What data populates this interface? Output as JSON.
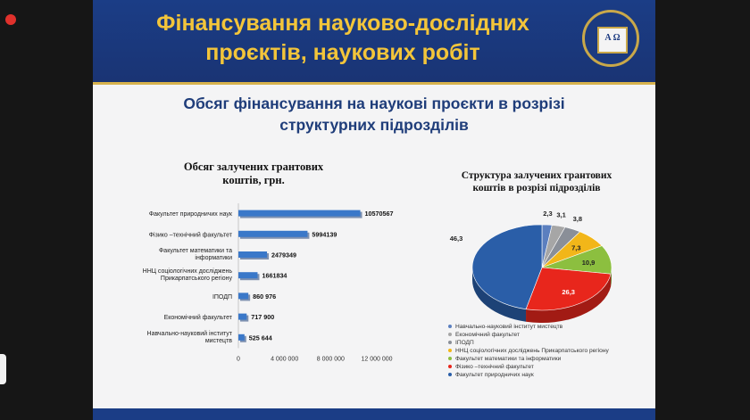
{
  "slide": {
    "title_line1": "Фінансування науково-дослідних",
    "title_line2": "проєктів, наукових робіт",
    "subtitle_line1": "Обсяг фінансування на наукові проєкти в розрізі",
    "subtitle_line2": "структурних підрозділів",
    "logo_text": "Α Ω"
  },
  "colors": {
    "banner": "#1b3d86",
    "gold": "#f3c53a",
    "bar": "#3a78c9"
  },
  "chart_data": [
    {
      "type": "bar",
      "orientation": "horizontal",
      "title_line1": "Обсяг залучених грантових",
      "title_line2": "коштів, грн.",
      "categories": [
        {
          "line1": "Факультет природничих наук",
          "line2": ""
        },
        {
          "line1": "Фізико –технічний факультет",
          "line2": ""
        },
        {
          "line1": "Факультет математики та",
          "line2": "інформатики"
        },
        {
          "line1": "ННЦ соціологічних досліджень",
          "line2": "Прикарпатського регіону"
        },
        {
          "line1": "ІПОДП",
          "line2": ""
        },
        {
          "line1": "Економічний факультет",
          "line2": ""
        },
        {
          "line1": "Навчально-науковий інститут",
          "line2": "мистецтв"
        }
      ],
      "values": [
        10570567,
        5994139,
        2479349,
        1661834,
        860976,
        717900,
        525644
      ],
      "value_labels": [
        "10570567",
        "5994139",
        "2479349",
        "1661834",
        "860 976",
        "717 900",
        "525 644"
      ],
      "xlim": [
        0,
        12000000
      ],
      "xticks": [
        0,
        4000000,
        8000000,
        12000000
      ],
      "xtick_labels": [
        "0",
        "4 000 000",
        "8 000 000",
        "12 000 000"
      ]
    },
    {
      "type": "pie",
      "title_line1": "Структура залучених грантових",
      "title_line2": "коштів в розрізі підрозділів",
      "slices": [
        {
          "name": "Навчально-науковий інститут мистецтв",
          "value": 2.3,
          "label": "2,3",
          "color": "#5b7fbf"
        },
        {
          "name": "Економічний факультет",
          "value": 3.1,
          "label": "3,1",
          "color": "#a6a6a6"
        },
        {
          "name": "ІПОДП",
          "value": 3.8,
          "label": "3,8",
          "color": "#8a8f98"
        },
        {
          "name": "ННЦ соціологічних досліджень Прикарпатського регіону",
          "value": 7.3,
          "label": "7,3",
          "color": "#f2b619"
        },
        {
          "name": "Факультет математики та інформатики",
          "value": 10.9,
          "label": "10,9",
          "color": "#8cbf3f"
        },
        {
          "name": "Фізико –технічний факультет",
          "value": 26.3,
          "label": "26,3",
          "color": "#e8261c"
        },
        {
          "name": "Факультет природничих наук",
          "value": 46.3,
          "label": "46,3",
          "color": "#2a5ea8"
        }
      ],
      "legend_position": "bottom"
    }
  ]
}
